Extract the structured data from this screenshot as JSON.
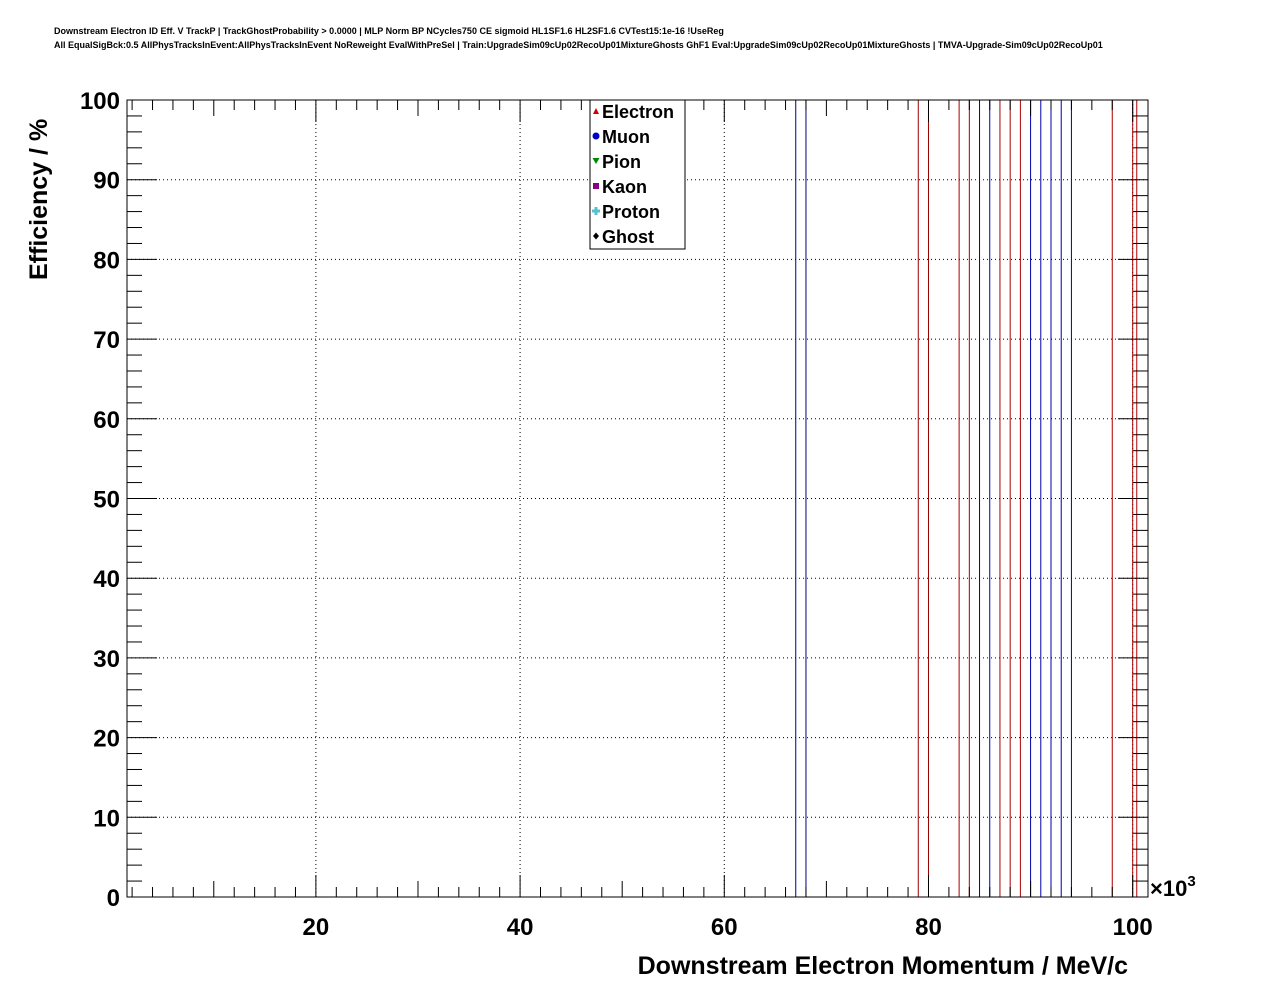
{
  "chart_data": {
    "type": "line",
    "title_lines": [
      "Downstream Electron ID Eff. V TrackP | TrackGhostProbability > 0.0000 | MLP Norm BP NCycles750 CE sigmoid HL1SF1.6 HL2SF1.6 CVTest15:1e-16 !UseReg",
      "All EqualSigBck:0.5 AllPhysTracksInEvent:AllPhysTracksInEvent NoReweight EvalWithPreSel | Train:UpgradeSim09cUp02RecoUp01MixtureGhosts GhF1 Eval:UpgradeSim09cUp02RecoUp01MixtureGhosts | TMVA-Upgrade-Sim09cUp02RecoUp01"
    ],
    "xlabel": "Downstream Electron Momentum / MeV/c",
    "ylabel": "Efficiency / %",
    "x_multiplier": "×10",
    "x_multiplier_exp": "3",
    "xlim": [
      1500,
      101500
    ],
    "ylim": [
      0,
      100
    ],
    "x_ticks": [
      20,
      40,
      60,
      80,
      100
    ],
    "y_ticks": [
      0,
      10,
      20,
      30,
      40,
      50,
      60,
      70,
      80,
      90,
      100
    ],
    "grid": true,
    "legend_position": "top-center",
    "legend": [
      {
        "label": "Electron",
        "color": "#cc0000",
        "marker": "triangle-up"
      },
      {
        "label": "Muon",
        "color": "#0000cc",
        "marker": "circle"
      },
      {
        "label": "Pion",
        "color": "#008800",
        "marker": "triangle-down"
      },
      {
        "label": "Kaon",
        "color": "#880088",
        "marker": "square"
      },
      {
        "label": "Proton",
        "color": "#55c0d0",
        "marker": "cross"
      },
      {
        "label": "Ghost",
        "color": "#000000",
        "marker": "diamond"
      }
    ],
    "vertical_lines": [
      {
        "x": 67.0,
        "color": "#000080"
      },
      {
        "x": 68.0,
        "color": "#000080"
      },
      {
        "x": 79.0,
        "color": "#990000"
      },
      {
        "x": 80.0,
        "color": "#990000"
      },
      {
        "x": 83.0,
        "color": "#aa0000"
      },
      {
        "x": 84.0,
        "color": "#aa0000"
      },
      {
        "x": 85.0,
        "color": "#0000aa"
      },
      {
        "x": 86.0,
        "color": "#0000aa"
      },
      {
        "x": 87.0,
        "color": "#aa0000"
      },
      {
        "x": 88.0,
        "color": "#aa0000"
      },
      {
        "x": 89.0,
        "color": "#aa0000"
      },
      {
        "x": 90.0,
        "color": "#0000aa"
      },
      {
        "x": 91.0,
        "color": "#0000aa"
      },
      {
        "x": 92.0,
        "color": "#0000aa"
      },
      {
        "x": 93.0,
        "color": "#0000aa"
      },
      {
        "x": 94.0,
        "color": "#0000aa"
      },
      {
        "x": 98.0,
        "color": "#aa0000"
      },
      {
        "x": 100.0,
        "color": "#aa0000"
      },
      {
        "x": 100.4,
        "color": "#aa0000"
      }
    ]
  }
}
